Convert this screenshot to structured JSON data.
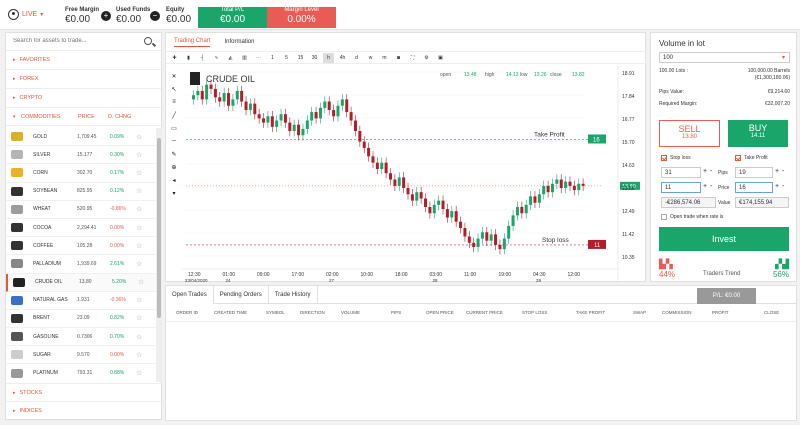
{
  "topbar": {
    "live": "LIVE",
    "free_margin_label": "Free Margin",
    "free_margin": "€0.00",
    "used_funds_label": "Used Funds",
    "used_funds": "€0.00",
    "equity_label": "Equity",
    "equity": "€0.00",
    "total_pl_label": "Total P/L",
    "total_pl": "€0.00",
    "margin_level_label": "Margin Level",
    "margin_level": "0.00%"
  },
  "assets": {
    "search_placeholder": "Search for assets to trade...",
    "categories_top": [
      "FAVORITES",
      "FOREX",
      "CRYPTO"
    ],
    "commodities_header": {
      "name": "COMMODITIES",
      "price": "PRICE",
      "change": "D. CHNG"
    },
    "rows": [
      {
        "name": "GOLD",
        "price": "1,709.45",
        "change": "0.09%",
        "dir": "pos",
        "color": "#d9b12c"
      },
      {
        "name": "SILVER",
        "price": "15.177",
        "change": "0.30%",
        "dir": "pos",
        "color": "#b5b5b5"
      },
      {
        "name": "CORN",
        "price": "302.70",
        "change": "0.17%",
        "dir": "pos",
        "color": "#e8b32a"
      },
      {
        "name": "SOYBEAN",
        "price": "825.95",
        "change": "0.12%",
        "dir": "pos",
        "color": "#333"
      },
      {
        "name": "WHEAT",
        "price": "520.95",
        "change": "-0.86%",
        "dir": "neg",
        "color": "#9c9c9c"
      },
      {
        "name": "COCOA",
        "price": "2,294.41",
        "change": "0.00%",
        "dir": "neg",
        "color": "#333"
      },
      {
        "name": "COFFEE",
        "price": "105.28",
        "change": "0.00%",
        "dir": "neg",
        "color": "#333"
      },
      {
        "name": "PALLADIUM",
        "price": "1,939.69",
        "change": "2.61%",
        "dir": "pos",
        "color": "#888"
      },
      {
        "name": "CRUDE OIL",
        "price": "13.80",
        "change": "5.20%",
        "dir": "pos",
        "color": "#222",
        "selected": true
      },
      {
        "name": "NATURAL GAS",
        "price": "1.931",
        "change": "-0.36%",
        "dir": "neg",
        "color": "#3a6fc4"
      },
      {
        "name": "BRENT",
        "price": "23.09",
        "change": "0.82%",
        "dir": "pos",
        "color": "#333"
      },
      {
        "name": "GASOLINE",
        "price": "0.7306",
        "change": "0.70%",
        "dir": "pos",
        "color": "#555"
      },
      {
        "name": "SUGAR",
        "price": "9.570",
        "change": "0.00%",
        "dir": "neg",
        "color": "#ccc"
      },
      {
        "name": "PLATINUM",
        "price": "793.31",
        "change": "0.88%",
        "dir": "pos",
        "color": "#999"
      }
    ],
    "categories_bottom": [
      "STOCKS",
      "INDICES"
    ]
  },
  "chart": {
    "tabs": [
      "Trading Chart",
      "Information"
    ],
    "title": "CRUDE OIL",
    "open_label": "open",
    "open": "13.48",
    "high_label": "high",
    "high": "14.13",
    "low_label": "low",
    "low": "13.26",
    "close_label": "close",
    "close": "13.82",
    "timeframes": [
      "1",
      "5",
      "15",
      "30",
      "h",
      "4h",
      "d",
      "w",
      "m"
    ],
    "take_profit_label": "Take Profit",
    "take_profit_value": "16",
    "stop_loss_label": "Stop loss",
    "stop_loss_value": "11",
    "price_tag": "13.80",
    "yaxis": [
      "18.91",
      "17.84",
      "16.77",
      "15.70",
      "14.63",
      "13.56",
      "12.49",
      "11.42",
      "10.35"
    ],
    "xaxis": [
      {
        "t": "12:30",
        "d": "23/04/2020"
      },
      {
        "t": "01:00",
        "d": "24"
      },
      {
        "t": "09:00",
        "d": ""
      },
      {
        "t": "17:00",
        "d": ""
      },
      {
        "t": "02:00",
        "d": "27"
      },
      {
        "t": "10:00",
        "d": ""
      },
      {
        "t": "18:00",
        "d": ""
      },
      {
        "t": "03:00",
        "d": "28"
      },
      {
        "t": "11:00",
        "d": ""
      },
      {
        "t": "19:00",
        "d": ""
      },
      {
        "t": "04:30",
        "d": "29"
      },
      {
        "t": "12:00",
        "d": ""
      }
    ]
  },
  "chart_data": {
    "type": "candlestick",
    "ylim": [
      10.0,
      19.2
    ],
    "take_profit": 16,
    "stop_loss": 11,
    "last": 13.8,
    "closes": [
      18.1,
      18.3,
      17.9,
      18.6,
      18.4,
      18.0,
      17.8,
      18.2,
      17.6,
      17.9,
      18.3,
      17.8,
      17.4,
      17.7,
      17.2,
      17.0,
      16.8,
      17.1,
      16.6,
      16.9,
      17.2,
      16.8,
      16.4,
      16.7,
      16.2,
      16.5,
      16.9,
      17.3,
      17.0,
      17.5,
      17.8,
      17.4,
      17.1,
      17.6,
      17.9,
      17.3,
      16.9,
      16.4,
      15.9,
      15.6,
      15.2,
      14.9,
      14.6,
      14.9,
      14.4,
      14.1,
      13.8,
      14.2,
      13.7,
      13.4,
      13.1,
      13.5,
      13.2,
      12.8,
      12.5,
      12.9,
      13.1,
      12.7,
      12.3,
      12.6,
      12.1,
      11.8,
      11.4,
      11.1,
      10.9,
      11.3,
      11.6,
      11.2,
      11.5,
      11.0,
      10.8,
      11.3,
      11.9,
      12.4,
      12.8,
      12.5,
      12.9,
      13.3,
      13.0,
      13.4,
      13.8,
      13.5,
      13.9,
      14.1,
      13.7,
      14.0,
      13.8,
      13.6,
      13.9,
      13.8
    ]
  },
  "orders": {
    "tabs": [
      "Open Trades",
      "Pending Orders",
      "Trade History"
    ],
    "pl_label": "P/L: €0.00",
    "columns": [
      "ORDER ID",
      "CREATED TIME",
      "SYMBOL",
      "DIRECTION",
      "VOLUME",
      "PIPS",
      "OPEN PRICE",
      "CURRENT PRICE",
      "STOP LOSS",
      "TAKE PROFIT",
      "SWAP",
      "COMMISSION",
      "PROFIT",
      "CLOSE"
    ]
  },
  "trade": {
    "volume_label": "Volume in lot",
    "volume": "100",
    "lots_label": "100.00 Lots :",
    "lots_value": "100,000.00 Barrels",
    "lots_value2": "(€1,300,180.06)",
    "pips_label": "Pips Value:",
    "pips_value": "€9,214.60",
    "margin_label": "Required Margin:",
    "margin_value": "€32,007.20",
    "sell_label": "SELL",
    "sell_price": "13.80",
    "buy_label": "BUY",
    "buy_price": "14.11",
    "stop_loss_label": "Stop loss",
    "take_profit_label": "Take Profit",
    "sl_pips": "31",
    "sl_price": "11",
    "sl_value": "-€286,574.06",
    "tp_pips": "19",
    "tp_price": "16",
    "tp_value": "€174,155.94",
    "pips_word": "Pips",
    "price_word": "Price",
    "value_word": "Value",
    "open_when_label": "Open trade when rate is",
    "invest_label": "Invest",
    "bear_pct": "44%",
    "trend_label": "Traders Trend",
    "bull_pct": "56%"
  }
}
